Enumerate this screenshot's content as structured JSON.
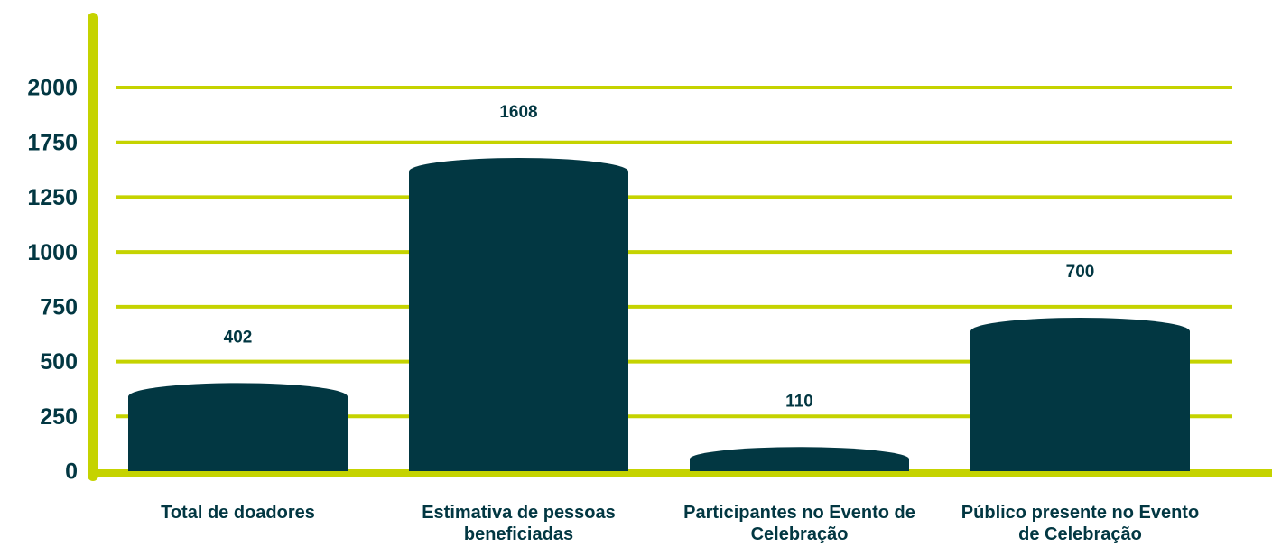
{
  "chart_data": {
    "type": "bar",
    "categories": [
      "Total de doadores",
      "Estimativa de pessoas beneficiadas",
      "Participantes no Evento de Celebração",
      "Público presente no Evento de Celebração"
    ],
    "values": [
      402,
      1608,
      110,
      700
    ],
    "color": "#023742",
    "ylim": [
      0,
      2000
    ],
    "yticks": [
      0,
      250,
      500,
      750,
      1000,
      1250,
      1750,
      2000
    ],
    "grid": true,
    "grid_color": "#c5d300"
  }
}
